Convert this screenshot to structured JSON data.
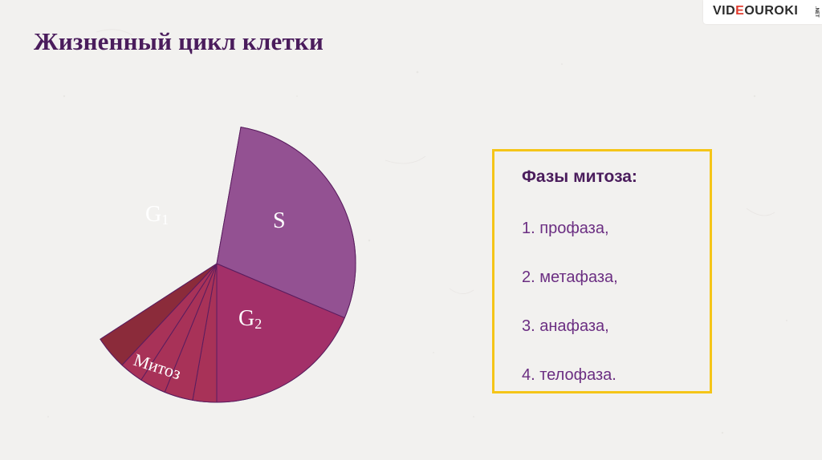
{
  "slide": {
    "title": "Жизненный цикл клетки"
  },
  "brand": {
    "logo_prefix": "VID",
    "logo_highlight": "E",
    "logo_suffix": "OUROKI",
    "logo_tld": ".NET"
  },
  "cycle_diagram": {
    "segments": [
      {
        "label": "G",
        "subscript": "1",
        "color": "#651e6c"
      },
      {
        "label": "S",
        "subscript": "",
        "color": "#935192"
      },
      {
        "label": "G",
        "subscript": "2",
        "color": "#a33069"
      },
      {
        "label": "Митоз",
        "subscript": "",
        "color": "#a3305f"
      }
    ],
    "mitosis_subsector_colors": [
      "#a83258",
      "#a83258",
      "#a83258",
      "#a83258",
      "#8b2b3a"
    ],
    "outline_color": "#5a1d5f"
  },
  "phases_box": {
    "heading": "Фазы митоза:",
    "items": [
      "1. профаза,",
      "2. метафаза,",
      "3. анафаза,",
      "4. телофаза."
    ],
    "border_color": "#f5c518"
  }
}
